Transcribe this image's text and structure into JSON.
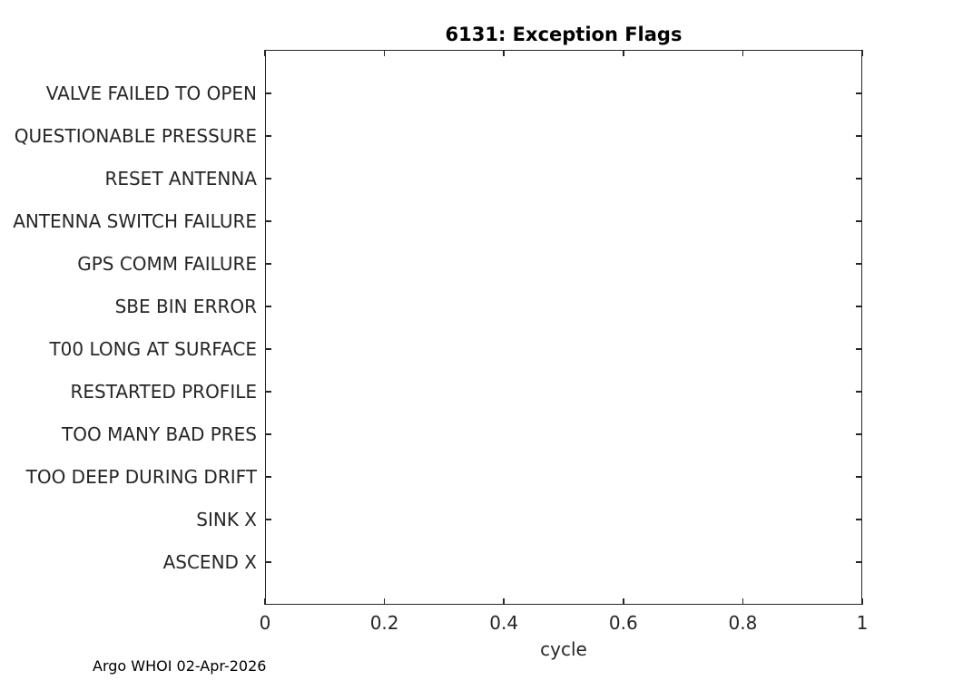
{
  "chart_data": {
    "type": "scatter",
    "title": "6131: Exception Flags",
    "xlabel": "cycle",
    "ylabel": "",
    "xlim": [
      0,
      1
    ],
    "x_ticks": [
      0,
      0.2,
      0.4,
      0.6,
      0.8,
      1
    ],
    "x_tick_labels": [
      "0",
      "0.2",
      "0.4",
      "0.6",
      "0.8",
      "1"
    ],
    "categories": [
      "VALVE FAILED TO OPEN",
      "QUESTIONABLE PRESSURE",
      "RESET ANTENNA",
      "ANTENNA SWITCH FAILURE",
      "GPS COMM FAILURE",
      "SBE BIN ERROR",
      "T00 LONG AT SURFACE",
      "RESTARTED PROFILE",
      "TOO MANY BAD PRES",
      "TOO DEEP DURING DRIFT",
      "SINK X",
      "ASCEND X"
    ],
    "points": [],
    "grid": false,
    "legend": null,
    "box": true,
    "tick_direction": "in",
    "annotation": "Argo WHOI 02-Apr-2026"
  },
  "colors": {
    "background": "#ffffff",
    "text": "#262626",
    "title": "#000000",
    "axis": "#262626"
  }
}
